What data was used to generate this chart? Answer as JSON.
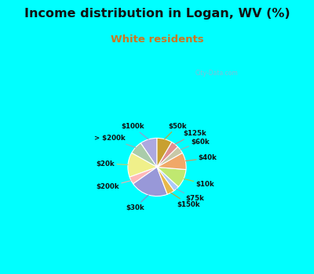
{
  "title": "Income distribution in Logan, WV (%)",
  "subtitle": "White residents",
  "title_color": "#111111",
  "subtitle_color": "#cc7722",
  "bg_top_color": "#00ffff",
  "chart_bg_color": "#e0f0e8",
  "labels": [
    "$100k",
    "> $200k",
    "$20k",
    "$200k",
    "$30k",
    "$150k",
    "$75k",
    "$10k",
    "$40k",
    "$60k",
    "$125k",
    "$50k"
  ],
  "values": [
    9,
    7,
    13,
    4,
    20,
    4,
    3,
    10,
    9,
    4,
    4,
    8
  ],
  "colors": [
    "#aca8e0",
    "#aaccaa",
    "#f0f08a",
    "#ffb8b8",
    "#9898d8",
    "#e8b84a",
    "#aac8f8",
    "#c0e870",
    "#f0a868",
    "#c8c8a8",
    "#e09090",
    "#c8a030"
  ],
  "line_colors": [
    "#9898cc",
    "#aaaaaa",
    "#d0cc66",
    "#ffaaaa",
    "#8888cc",
    "#c8a030",
    "#88aacc",
    "#aacc44",
    "#e09050",
    "#aaaaaa",
    "#cc8888",
    "#c8a030"
  ]
}
